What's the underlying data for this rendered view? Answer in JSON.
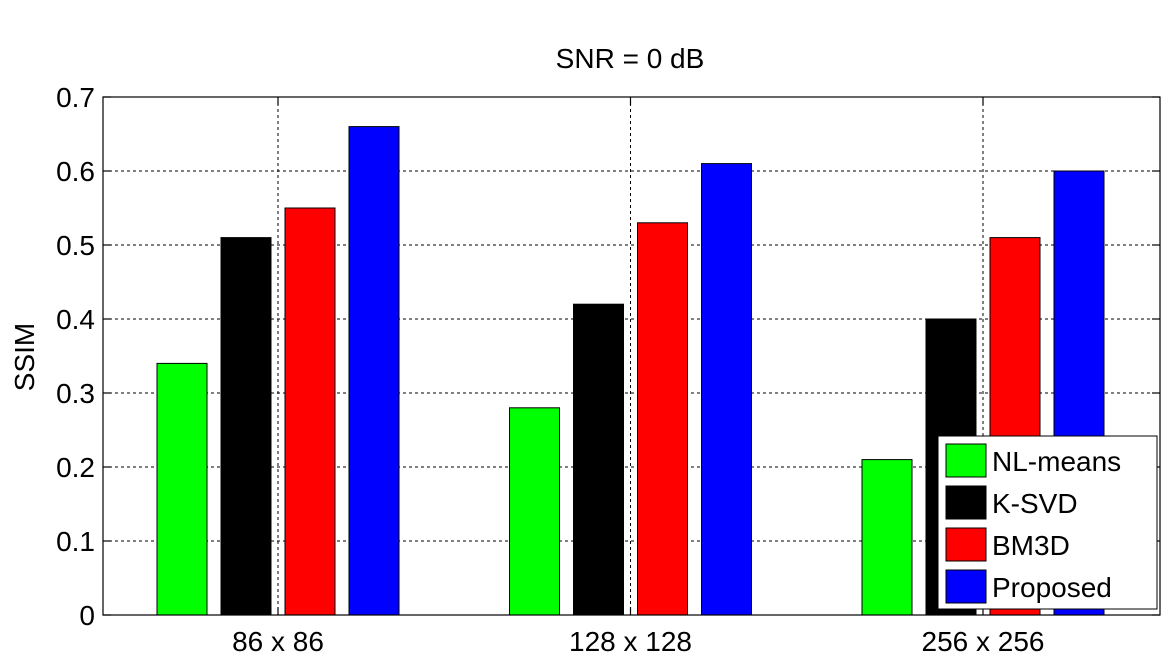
{
  "chart_data": {
    "type": "bar",
    "title": "SNR = 0 dB",
    "xlabel": "",
    "ylabel": "SSIM",
    "categories": [
      "86 x 86",
      "128 x 128",
      "256 x 256"
    ],
    "ylim": [
      0,
      0.7
    ],
    "yticks": [
      "0",
      "0.1",
      "0.2",
      "0.3",
      "0.4",
      "0.5",
      "0.6",
      "0.7"
    ],
    "grid": true,
    "legend_position": "bottom-right",
    "series": [
      {
        "name": "NL-means",
        "color": "#00ff00",
        "values": [
          0.34,
          0.28,
          0.21
        ]
      },
      {
        "name": "K-SVD",
        "color": "#000000",
        "values": [
          0.51,
          0.42,
          0.4
        ]
      },
      {
        "name": "BM3D",
        "color": "#ff0000",
        "values": [
          0.55,
          0.53,
          0.51
        ]
      },
      {
        "name": "Proposed",
        "color": "#0000ff",
        "values": [
          0.66,
          0.61,
          0.6
        ]
      }
    ]
  }
}
